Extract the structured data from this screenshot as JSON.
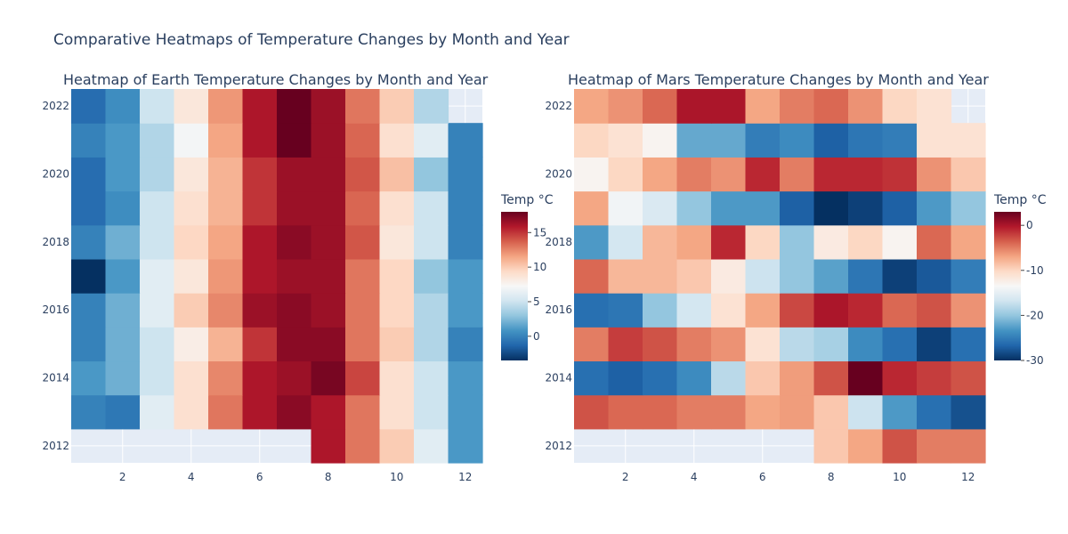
{
  "figure": {
    "title": "Comparative Heatmaps of Temperature Changes by Month and Year"
  },
  "colorscale": {
    "name": "RdBu reversed",
    "stops": [
      "#053061",
      "#2166ac",
      "#4393c3",
      "#92c5de",
      "#d1e5f0",
      "#f7f7f7",
      "#fddbc7",
      "#f4a582",
      "#d6604d",
      "#b2182b",
      "#67001f"
    ]
  },
  "chart_data": [
    {
      "type": "heatmap",
      "title": "Heatmap of Earth Temperature Changes by Month and Year",
      "x": [
        1,
        2,
        3,
        4,
        5,
        6,
        7,
        8,
        9,
        10,
        11,
        12
      ],
      "y": [
        2012,
        2013,
        2014,
        2015,
        2016,
        2017,
        2018,
        2019,
        2020,
        2021,
        2022
      ],
      "xticks": [
        2,
        4,
        6,
        8,
        10,
        12
      ],
      "yticks": [
        2012,
        2014,
        2016,
        2018,
        2020,
        2022
      ],
      "colorbar": {
        "title": "Temp °C",
        "range": [
          -3.5,
          18
        ],
        "ticks": [
          0,
          5,
          10,
          15
        ]
      },
      "z": [
        [
          null,
          null,
          null,
          null,
          null,
          null,
          null,
          16,
          13,
          10,
          6,
          1
        ],
        [
          0,
          -0.5,
          6,
          9,
          13,
          16,
          17,
          16,
          13,
          9,
          5,
          1
        ],
        [
          1,
          2,
          5,
          9,
          12.5,
          16,
          16.5,
          17.5,
          14.5,
          9,
          5,
          1
        ],
        [
          0,
          2,
          5,
          8,
          11,
          15,
          17,
          17,
          13,
          10,
          4,
          0
        ],
        [
          0,
          2,
          6,
          10,
          12.5,
          16.5,
          17,
          16.5,
          13,
          9.5,
          4,
          1
        ],
        [
          -3.5,
          1,
          6,
          8.5,
          12,
          16,
          16.5,
          16.5,
          13,
          9.5,
          3,
          1
        ],
        [
          0,
          2,
          5,
          9.5,
          11.5,
          16,
          17,
          16.5,
          14,
          8.5,
          5,
          0
        ],
        [
          -1,
          0.5,
          5,
          9,
          11,
          15,
          16.5,
          16.5,
          13.5,
          9,
          5,
          0
        ],
        [
          -1,
          1,
          4,
          8.5,
          11,
          15,
          16.5,
          16.5,
          14,
          10.5,
          3,
          0
        ],
        [
          0,
          1,
          4,
          7,
          11.5,
          16,
          18,
          16.5,
          13.5,
          9,
          6,
          0
        ],
        [
          -1,
          0.5,
          5,
          8.5,
          12,
          16,
          18,
          16.5,
          13,
          10,
          4,
          null
        ]
      ]
    },
    {
      "type": "heatmap",
      "title": "Heatmap of Mars Temperature Changes by Month and Year",
      "x": [
        1,
        2,
        3,
        4,
        5,
        6,
        7,
        8,
        9,
        10,
        11,
        12
      ],
      "y": [
        2012,
        2013,
        2014,
        2015,
        2016,
        2017,
        2018,
        2019,
        2020,
        2021,
        2022
      ],
      "xticks": [
        2,
        4,
        6,
        8,
        10,
        12
      ],
      "yticks": [
        2012,
        2014,
        2016,
        2018,
        2020,
        2022
      ],
      "colorbar": {
        "title": "Temp °C",
        "range": [
          -30,
          3
        ],
        "ticks": [
          0,
          -10,
          -20,
          -30
        ]
      },
      "z": [
        [
          null,
          null,
          null,
          null,
          null,
          null,
          null,
          -9,
          -7,
          -3,
          -5,
          -5
        ],
        [
          -3,
          -4,
          -4,
          -5,
          -5,
          -7,
          -6.5,
          -9,
          -17,
          -23,
          -26,
          -28
        ],
        [
          -26,
          -27,
          -26,
          -24,
          -18,
          -9,
          -6.5,
          -3,
          3,
          -1,
          -2,
          -3
        ],
        [
          -5,
          -2,
          -3,
          -5,
          -6,
          -11,
          -18,
          -19,
          -24,
          -26,
          -29,
          -26
        ],
        [
          -26,
          -25.5,
          -20,
          -16.5,
          -11,
          -7,
          -2.5,
          0,
          -1,
          -4,
          -3,
          -6
        ],
        [
          -4,
          -8,
          -8,
          -9,
          -12,
          -17,
          -20,
          -22.5,
          -25.5,
          -29,
          -27.5,
          -25
        ],
        [
          -23,
          -16.5,
          -8,
          -7,
          -1,
          -10,
          -20,
          -12,
          -10,
          -13,
          -4,
          -7
        ],
        [
          -7,
          -14,
          -16,
          -20,
          -23,
          -23,
          -27,
          -31,
          -29,
          -27,
          -23,
          -20
        ],
        [
          -13,
          -10,
          -7,
          -5,
          -6,
          -1,
          -5,
          -1,
          -1,
          -1.5,
          -6,
          -9
        ],
        [
          -10,
          -11,
          -13,
          -22,
          -22,
          -25,
          -24,
          -27,
          -25.5,
          -25,
          -11,
          -11
        ],
        [
          -7,
          -6,
          -4,
          0,
          0,
          -7,
          -5,
          -4,
          -6,
          -10,
          -11,
          null
        ]
      ]
    }
  ]
}
